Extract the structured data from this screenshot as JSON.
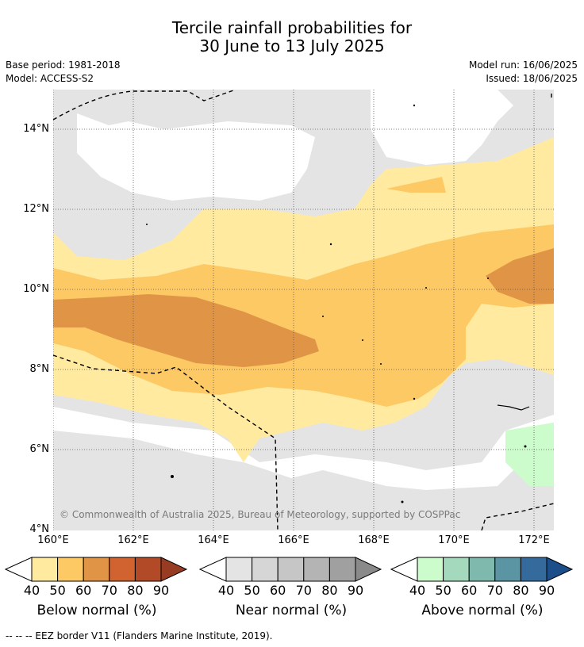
{
  "title_line1": "Tercile rainfall probabilities for",
  "title_line2": "30 June to 13 July 2025",
  "meta": {
    "base_period": "Base period: 1981-2018",
    "model": "Model: ACCESS-S2",
    "model_run": "Model run: 16/06/2025",
    "issued": "Issued: 18/06/2025"
  },
  "copyright": "© Commonwealth of Australia 2025, Bureau of Meteorology, supported by COSPPac",
  "lat_labels": [
    "14°N",
    "12°N",
    "10°N",
    "8°N",
    "6°N",
    "4°N"
  ],
  "lon_labels": [
    "160°E",
    "162°E",
    "164°E",
    "166°E",
    "168°E",
    "170°E",
    "172°E"
  ],
  "colorbars": {
    "below": {
      "label": "Below normal (%)",
      "ticks": [
        "40",
        "50",
        "60",
        "70",
        "80",
        "90"
      ],
      "colors": [
        "#ffeaa0",
        "#fdc964",
        "#e09546",
        "#d0632f",
        "#b24a28",
        "#973c22"
      ]
    },
    "near": {
      "label": "Near normal (%)",
      "ticks": [
        "40",
        "50",
        "60",
        "70",
        "80",
        "90"
      ],
      "colors": [
        "#e4e4e4",
        "#d6d6d6",
        "#c6c6c6",
        "#b4b4b4",
        "#a0a0a0",
        "#8a8a8a"
      ]
    },
    "above": {
      "label": "Above normal (%)",
      "ticks": [
        "40",
        "50",
        "60",
        "70",
        "80",
        "90"
      ],
      "colors": [
        "#ccfbcc",
        "#a4d9bd",
        "#7fb8ad",
        "#5b95a4",
        "#356a9d",
        "#1c4e8a"
      ]
    }
  },
  "footnote": "--  --  -- EEZ border V11 (Flanders Marine Institute, 2019)."
}
